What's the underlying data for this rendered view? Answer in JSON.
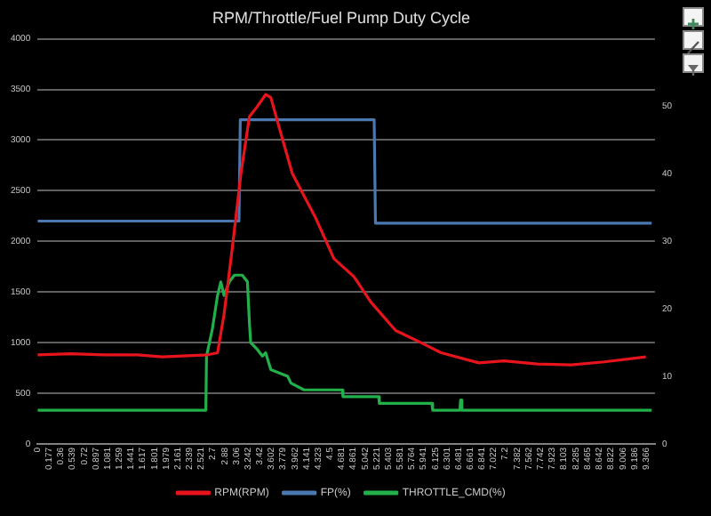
{
  "chart_data": {
    "type": "line",
    "title": "RPM/Throttle/Fuel Pump Duty Cycle",
    "xlim": [
      0,
      9.5
    ],
    "xticks": [
      0,
      0.177,
      0.36,
      0.539,
      0.72,
      0.897,
      1.081,
      1.259,
      1.441,
      1.617,
      1.801,
      1.979,
      2.161,
      2.339,
      2.521,
      2.7,
      2.88,
      3.06,
      3.242,
      3.42,
      3.602,
      3.779,
      3.962,
      4.141,
      4.323,
      4.5,
      4.681,
      4.861,
      5.042,
      5.221,
      5.403,
      5.581,
      5.764,
      5.941,
      6.125,
      6.301,
      6.481,
      6.661,
      6.841,
      7.022,
      7.2,
      7.382,
      7.562,
      7.742,
      7.923,
      8.103,
      8.285,
      8.465,
      8.642,
      8.822,
      9.006,
      9.186,
      9.366
    ],
    "ylim": [
      0,
      4000
    ],
    "yticks": [
      0,
      500,
      1000,
      1500,
      2000,
      2500,
      3000,
      3500,
      4000
    ],
    "y2lim": [
      0,
      60
    ],
    "y2ticks": [
      0,
      10,
      20,
      30,
      40,
      50
    ],
    "grid": "y",
    "legend": "bottom",
    "marker": "none",
    "line_style": "solid",
    "series": [
      {
        "name": "RPM(RPM)",
        "color": "#e8141c",
        "x": [
          0,
          0.51,
          1.03,
          1.54,
          1.92,
          2.31,
          2.62,
          2.77,
          2.87,
          3.0,
          3.13,
          3.26,
          3.38,
          3.51,
          3.59,
          3.72,
          3.92,
          4.28,
          4.56,
          4.87,
          5.13,
          5.51,
          5.9,
          6.21,
          6.79,
          7.18,
          7.69,
          8.21,
          8.72,
          9.36
        ],
        "values": [
          880,
          890,
          880,
          880,
          860,
          870,
          880,
          900,
          1280,
          1950,
          2670,
          3230,
          3330,
          3450,
          3420,
          3120,
          2670,
          2230,
          1830,
          1650,
          1400,
          1120,
          1000,
          900,
          800,
          820,
          790,
          780,
          810,
          860
        ]
      },
      {
        "name": "FP(%)",
        "color": "#4a78b0",
        "axis": "y2",
        "x": [
          0,
          3.1,
          3.12,
          5.18,
          5.2,
          9.45
        ],
        "values": [
          33,
          33,
          48,
          48,
          32.7,
          32.7
        ]
      },
      {
        "name": "THROTTLE_CMD(%)",
        "color": "#22b04a",
        "axis": "y2",
        "x": [
          0,
          2.59,
          2.6,
          2.69,
          2.77,
          2.82,
          2.87,
          2.95,
          3.03,
          3.15,
          3.23,
          3.26,
          3.28,
          3.38,
          3.46,
          3.51,
          3.59,
          3.72,
          3.85,
          3.9,
          4.1,
          4.69,
          4.7,
          5.25,
          5.26,
          6.07,
          6.08,
          6.5,
          6.51,
          6.53,
          9.45
        ],
        "values": [
          5,
          5,
          13,
          17,
          22,
          24,
          22,
          24,
          25,
          25,
          24,
          18,
          15,
          14,
          13,
          13.5,
          11,
          10.5,
          10,
          9,
          8,
          8,
          7,
          7,
          6,
          6,
          5,
          5,
          6.5,
          5,
          5
        ]
      }
    ]
  }
}
